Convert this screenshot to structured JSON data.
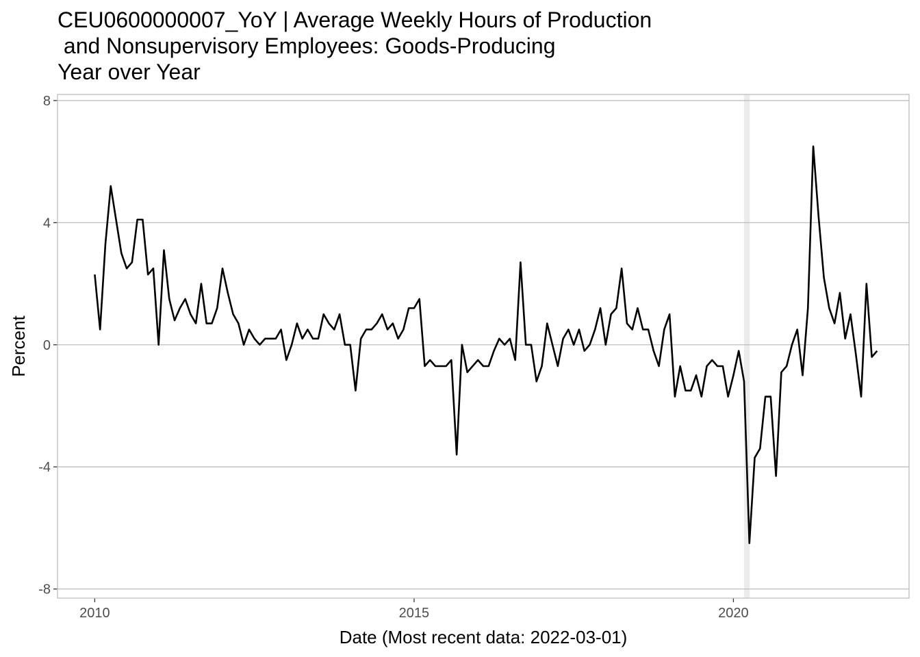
{
  "chart_data": {
    "type": "line",
    "title_lines": [
      "CEU0600000007_YoY | Average Weekly Hours of Production",
      " and Nonsupervisory Employees: Goods-Producing",
      "Year over Year"
    ],
    "xlabel": "Date (Most recent data: 2022-03-01)",
    "ylabel": "Percent",
    "x_ticks": [
      "2010",
      "2015",
      "2020"
    ],
    "y_ticks": [
      "-8",
      "-4",
      "0",
      "4",
      "8"
    ],
    "ylim": [
      -8.3,
      8.2
    ],
    "xlim": [
      "2009-06-01",
      "2022-10-01"
    ],
    "grid": true,
    "recession_shading": [
      {
        "start": "2020-03-01",
        "end": "2020-04-01"
      }
    ],
    "colors": {
      "line": "#000000",
      "grid": "#bebebe",
      "shade": "#ebebeb",
      "panel_border": "#bebebe"
    },
    "series": [
      {
        "start": "2010-01",
        "frequency": "monthly",
        "values": [
          2.3,
          0.5,
          3.3,
          5.2,
          4.1,
          3.0,
          2.5,
          2.7,
          4.1,
          4.1,
          2.3,
          2.5,
          0.0,
          3.1,
          1.5,
          0.8,
          1.2,
          1.5,
          1.0,
          0.7,
          2.0,
          0.7,
          0.7,
          1.2,
          2.5,
          1.7,
          1.0,
          0.7,
          0.0,
          0.5,
          0.2,
          0.0,
          0.2,
          0.2,
          0.2,
          0.5,
          -0.5,
          0.0,
          0.7,
          0.2,
          0.5,
          0.2,
          0.2,
          1.0,
          0.7,
          0.5,
          1.0,
          0.0,
          0.0,
          -1.5,
          0.2,
          0.5,
          0.5,
          0.7,
          1.0,
          0.5,
          0.7,
          0.2,
          0.5,
          1.2,
          1.2,
          1.5,
          -0.7,
          -0.5,
          -0.7,
          -0.7,
          -0.7,
          -0.5,
          -3.6,
          0.0,
          -0.9,
          -0.7,
          -0.5,
          -0.7,
          -0.7,
          -0.2,
          0.2,
          0.0,
          0.2,
          -0.5,
          2.7,
          0.0,
          0.0,
          -1.2,
          -0.7,
          0.7,
          0.0,
          -0.7,
          0.2,
          0.5,
          0.0,
          0.5,
          -0.2,
          0.0,
          0.5,
          1.2,
          0.0,
          1.0,
          1.2,
          2.5,
          0.7,
          0.5,
          1.2,
          0.5,
          0.5,
          -0.2,
          -0.7,
          0.5,
          1.0,
          -1.7,
          -0.7,
          -1.5,
          -1.5,
          -1.0,
          -1.7,
          -0.7,
          -0.5,
          -0.7,
          -0.7,
          -1.7,
          -1.0,
          -0.2,
          -1.2,
          -6.5,
          -3.7,
          -3.4,
          -1.7,
          -1.7,
          -4.3,
          -0.9,
          -0.7,
          0.0,
          0.5,
          -1.0,
          1.2,
          6.5,
          4.2,
          2.2,
          1.2,
          0.7,
          1.7,
          0.2,
          1.0,
          -0.3,
          -1.7,
          2.0,
          -0.4,
          -0.2
        ]
      }
    ]
  }
}
